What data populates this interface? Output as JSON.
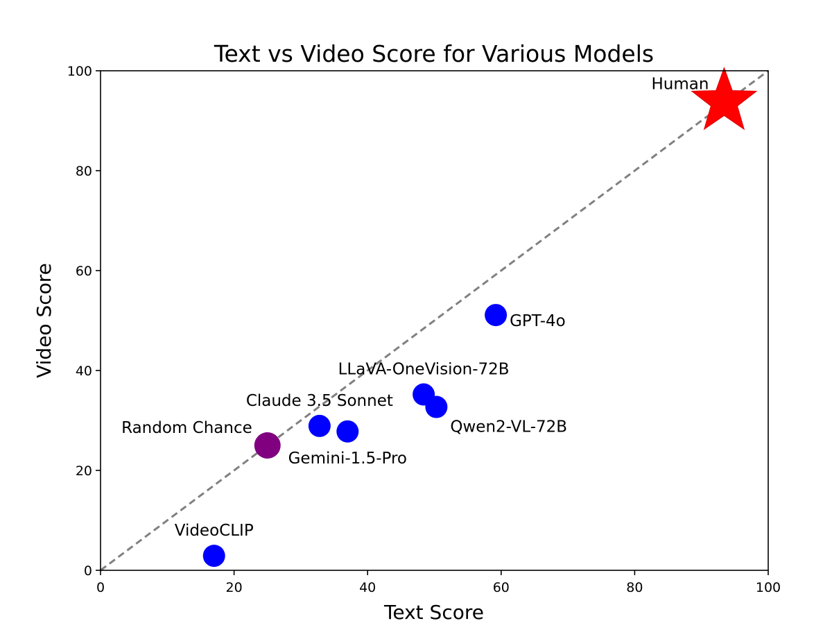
{
  "chart_data": {
    "type": "scatter",
    "title": "Text vs Video Score for Various Models",
    "xlabel": "Text Score",
    "ylabel": "Video Score",
    "xlim": [
      0,
      100
    ],
    "ylim": [
      0,
      100
    ],
    "xticks": [
      0,
      20,
      40,
      60,
      80,
      100
    ],
    "yticks": [
      0,
      20,
      40,
      60,
      80,
      100
    ],
    "grid": false,
    "reference_line": {
      "from": [
        0,
        0
      ],
      "to": [
        100,
        100
      ],
      "style": "dashed",
      "color": "#808080"
    },
    "points": [
      {
        "label": "Human",
        "x": 93.4,
        "y": 93.8,
        "marker": "star",
        "color": "#ff0000",
        "label_position": "upper-left"
      },
      {
        "label": "GPT-4o",
        "x": 59.2,
        "y": 51.1,
        "marker": "circle",
        "color": "#0000ff",
        "label_position": "right"
      },
      {
        "label": "LLaVA-OneVision-72B",
        "x": 48.4,
        "y": 35.2,
        "marker": "circle",
        "color": "#0000ff",
        "label_position": "above"
      },
      {
        "label": "Qwen2-VL-72B",
        "x": 50.3,
        "y": 32.7,
        "marker": "circle",
        "color": "#0000ff",
        "label_position": "lower-right"
      },
      {
        "label": "Claude 3.5 Sonnet",
        "x": 32.8,
        "y": 28.9,
        "marker": "circle",
        "color": "#0000ff",
        "label_position": "above"
      },
      {
        "label": "Gemini-1.5-Pro",
        "x": 37.0,
        "y": 27.8,
        "marker": "circle",
        "color": "#0000ff",
        "label_position": "below"
      },
      {
        "label": "Random Chance",
        "x": 25.0,
        "y": 25.0,
        "marker": "circle",
        "color": "#800080",
        "label_position": "upper-left"
      },
      {
        "label": "VideoCLIP",
        "x": 17.0,
        "y": 2.9,
        "marker": "circle",
        "color": "#0000ff",
        "label_position": "above"
      }
    ]
  }
}
